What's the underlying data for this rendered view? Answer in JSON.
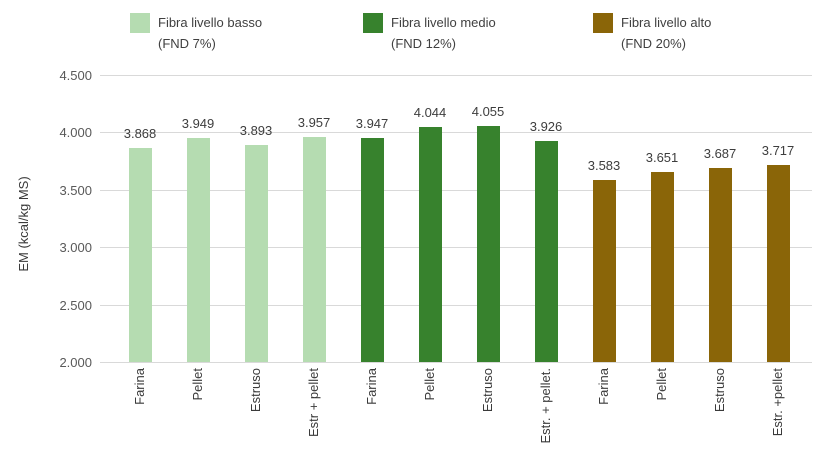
{
  "chart_data": {
    "type": "bar",
    "title": "",
    "xlabel": "",
    "ylabel": "EM (kcal/kg MS)",
    "ylim": [
      2000,
      4500
    ],
    "ytick_step": 500,
    "ytick_labels": [
      "4.500",
      "4.000",
      "3.500",
      "3.000",
      "2.500",
      "2.000"
    ],
    "grid": true,
    "legend_position": "top",
    "series": [
      {
        "name": "Fibra livello basso (FND 7%)",
        "name_lines": [
          "Fibra livello basso",
          "(FND 7%)"
        ],
        "color": "#b5dcb1",
        "categories": [
          "Farina",
          "Pellet",
          "Estruso",
          "Estr + pellet"
        ],
        "values": [
          3868,
          3949,
          3893,
          3957
        ],
        "value_labels": [
          "3.868",
          "3.949",
          "3.893",
          "3.957"
        ]
      },
      {
        "name": "Fibra livello medio (FND 12%)",
        "name_lines": [
          "Fibra livello medio",
          "(FND 12%)"
        ],
        "color": "#37822d",
        "categories": [
          "Farina",
          "Pellet",
          "Estruso",
          "Estr. + pellet."
        ],
        "values": [
          3947,
          4044,
          4055,
          3926
        ],
        "value_labels": [
          "3.947",
          "4.044",
          "4.055",
          "3.926"
        ]
      },
      {
        "name": "Fibra livello alto (FND 20%)",
        "name_lines": [
          "Fibra livello alto",
          "(FND 20%)"
        ],
        "color": "#8a6508",
        "categories": [
          "Farina",
          "Pellet",
          "Estruso",
          "Estr. +pellet"
        ],
        "values": [
          3583,
          3651,
          3687,
          3717
        ],
        "value_labels": [
          "3.583",
          "3.651",
          "3.687",
          "3.717"
        ]
      }
    ]
  }
}
